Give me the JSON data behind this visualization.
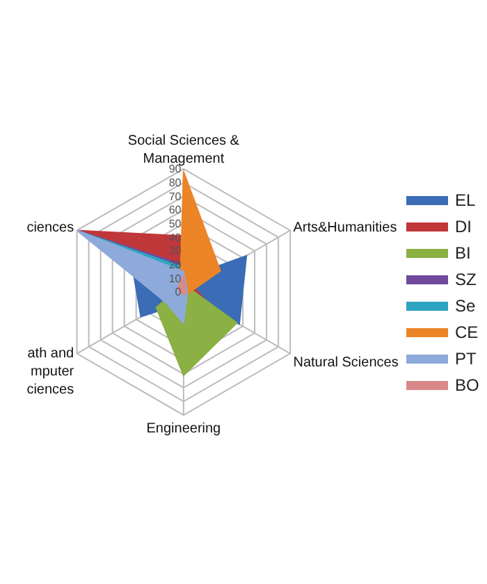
{
  "chart_data": {
    "type": "radar",
    "categories": [
      "Social Sciences &\nManagement",
      "Arts&Humanities",
      "Natural Sciences",
      "Engineering",
      "ath and\nmputer\nciences",
      "ciences"
    ],
    "series": [
      {
        "name": "EL",
        "color": "#3a6db5",
        "values": [
          10,
          53,
          47,
          8,
          36,
          44
        ]
      },
      {
        "name": "DI",
        "color": "#c0373a",
        "values": [
          41,
          8,
          25,
          5,
          5,
          90
        ]
      },
      {
        "name": "BI",
        "color": "#8bb043",
        "values": [
          2,
          5,
          45,
          61,
          23,
          5
        ]
      },
      {
        "name": "SZ",
        "color": "#6f4a9c",
        "values": [
          20,
          6,
          2,
          2,
          3,
          90
        ]
      },
      {
        "name": "Se",
        "color": "#2ea5c0",
        "values": [
          18,
          2,
          2,
          2,
          2,
          90
        ]
      },
      {
        "name": "CE",
        "color": "#ec8428",
        "values": [
          88,
          31,
          3,
          3,
          3,
          3
        ]
      },
      {
        "name": "PT",
        "color": "#8eaadb",
        "values": [
          15,
          3,
          3,
          23,
          15,
          90
        ]
      },
      {
        "name": "BO",
        "color": "#d9898a",
        "values": [
          12,
          2,
          2,
          2,
          2,
          5
        ]
      }
    ],
    "ylim": [
      0,
      90
    ],
    "yticks": [
      0,
      10,
      20,
      30,
      40,
      50,
      60,
      70,
      80,
      90
    ],
    "grid": true,
    "legend": "right"
  }
}
